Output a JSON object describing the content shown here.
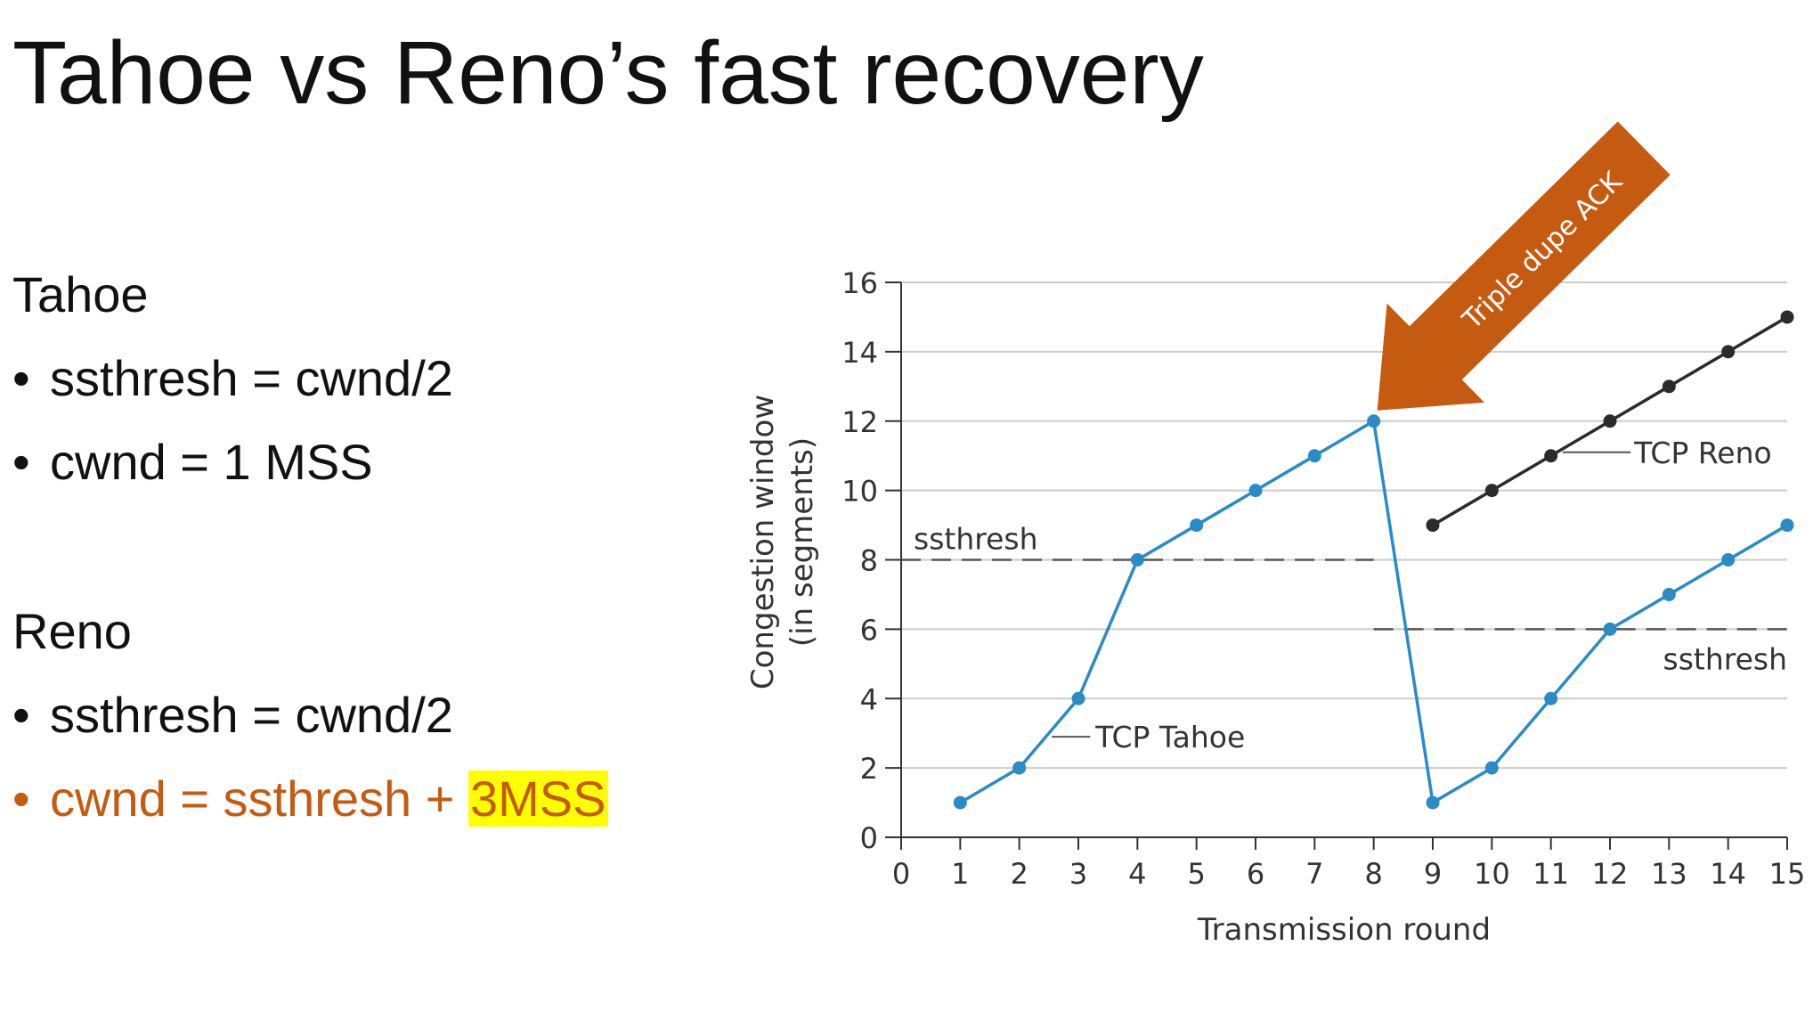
{
  "slide": {
    "title": "Tahoe vs Reno’s fast recovery",
    "tahoe": {
      "heading": "Tahoe",
      "bullets": [
        "ssthresh = cwnd/2",
        "cwnd = 1 MSS"
      ]
    },
    "reno": {
      "heading": "Reno",
      "bullet1": "ssthresh =  cwnd/2",
      "bullet2_prefix": "cwnd = ssthresh + ",
      "bullet2_highlight": "3MSS"
    },
    "bullet_char": "•"
  },
  "colors": {
    "accent": "#c55a11",
    "highlight": "#ffff00",
    "tahoe_line": "#2a8bc6",
    "reno_line": "#2b2b2b",
    "arrow": "#c55a11"
  },
  "chart_data": {
    "type": "line",
    "xlabel": "Transmission round",
    "ylabel": "Congestion window",
    "ylabel2": "(in segments)",
    "xlim": [
      0,
      15
    ],
    "ylim": [
      0,
      16
    ],
    "xticks": [
      0,
      1,
      2,
      3,
      4,
      5,
      6,
      7,
      8,
      9,
      10,
      11,
      12,
      13,
      14,
      15
    ],
    "yticks": [
      0,
      2,
      4,
      6,
      8,
      10,
      12,
      14,
      16
    ],
    "grid": true,
    "series": [
      {
        "name": "TCP Tahoe",
        "color": "#2a8bc6",
        "x": [
          1,
          2,
          3,
          4,
          5,
          6,
          7,
          8,
          9,
          10,
          11,
          12,
          13,
          14,
          15
        ],
        "y": [
          1,
          2,
          4,
          8,
          9,
          10,
          11,
          12,
          1,
          2,
          4,
          6,
          7,
          8,
          9
        ]
      },
      {
        "name": "TCP Reno",
        "color": "#2b2b2b",
        "x": [
          9,
          10,
          11,
          12,
          13,
          14,
          15
        ],
        "y": [
          9,
          10,
          11,
          12,
          13,
          14,
          15
        ]
      }
    ],
    "thresholds": [
      {
        "label": "ssthresh",
        "value": 8,
        "x_from": 0,
        "x_to": 8
      },
      {
        "label": "ssthresh",
        "value": 6,
        "x_from": 8,
        "x_to": 15
      }
    ],
    "annotations": [
      {
        "text": "TCP Tahoe",
        "series": "TCP Tahoe"
      },
      {
        "text": "TCP Reno",
        "series": "TCP Reno"
      },
      {
        "text": "Triple dupe ACK",
        "points_to": {
          "x": 8,
          "y": 12
        }
      }
    ]
  }
}
